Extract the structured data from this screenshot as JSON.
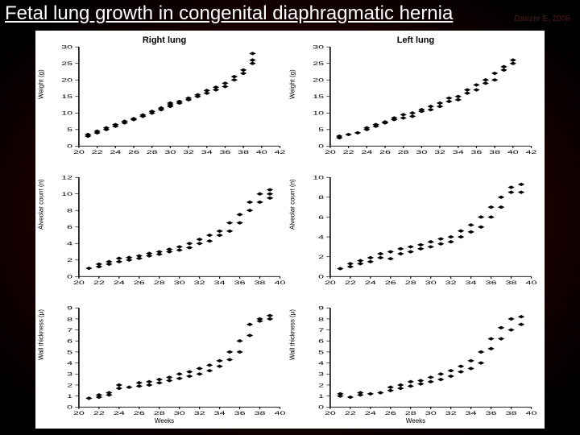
{
  "title": "Fetal lung growth in congenital diaphragmatic hernia",
  "citation": "Danzer E, 2008",
  "figure": {
    "background": "#ffffff",
    "marker_color": "#000000",
    "marker_size": 2.7,
    "axis_color": "#000000",
    "tick_fontsize": 7,
    "label_fontsize": 8,
    "title_fontsize": 11,
    "columns": [
      {
        "title": "Right lung"
      },
      {
        "title": "Left lung"
      }
    ],
    "xlabel_bottom": "Weeks",
    "panels": [
      {
        "row": 0,
        "col": 0,
        "ylabel": "Weight (g)",
        "xlim": [
          20,
          42
        ],
        "xtick_step": 2,
        "ylim": [
          0,
          30
        ],
        "ytick_step": 5,
        "points": [
          [
            21,
            3
          ],
          [
            21,
            3.5
          ],
          [
            22,
            4
          ],
          [
            22,
            4.5
          ],
          [
            23,
            5
          ],
          [
            23,
            5.5
          ],
          [
            24,
            6
          ],
          [
            24,
            6.5
          ],
          [
            25,
            7
          ],
          [
            25,
            7.5
          ],
          [
            26,
            8
          ],
          [
            26,
            8.3
          ],
          [
            27,
            9
          ],
          [
            27,
            9.4
          ],
          [
            28,
            10
          ],
          [
            28,
            10.5
          ],
          [
            29,
            11
          ],
          [
            29,
            11.5
          ],
          [
            30,
            12
          ],
          [
            30,
            12.5
          ],
          [
            30,
            13
          ],
          [
            31,
            13
          ],
          [
            31,
            13.5
          ],
          [
            32,
            14
          ],
          [
            32,
            14.5
          ],
          [
            33,
            15
          ],
          [
            33,
            15.5
          ],
          [
            34,
            16
          ],
          [
            34,
            16.8
          ],
          [
            35,
            17
          ],
          [
            35,
            17.8
          ],
          [
            36,
            18
          ],
          [
            36,
            19
          ],
          [
            37,
            20
          ],
          [
            37,
            21
          ],
          [
            38,
            22
          ],
          [
            38,
            23
          ],
          [
            39,
            25
          ],
          [
            39,
            26
          ],
          [
            39,
            28
          ]
        ]
      },
      {
        "row": 0,
        "col": 1,
        "ylabel": "Weight (g)",
        "xlim": [
          20,
          42
        ],
        "xtick_step": 2,
        "ylim": [
          0,
          30
        ],
        "ytick_step": 5,
        "points": [
          [
            21,
            2.5
          ],
          [
            21,
            3
          ],
          [
            22,
            3.5
          ],
          [
            23,
            4
          ],
          [
            24,
            5
          ],
          [
            24,
            5.5
          ],
          [
            25,
            6
          ],
          [
            25,
            6.5
          ],
          [
            26,
            7
          ],
          [
            26,
            7.3
          ],
          [
            27,
            8
          ],
          [
            27,
            8.5
          ],
          [
            28,
            8.5
          ],
          [
            28,
            9.5
          ],
          [
            29,
            9
          ],
          [
            29,
            10
          ],
          [
            30,
            10.5
          ],
          [
            30,
            11
          ],
          [
            31,
            11
          ],
          [
            31,
            12
          ],
          [
            32,
            12
          ],
          [
            32,
            13
          ],
          [
            33,
            13.5
          ],
          [
            33,
            14.5
          ],
          [
            34,
            14
          ],
          [
            34,
            15
          ],
          [
            35,
            16
          ],
          [
            35,
            17
          ],
          [
            36,
            17
          ],
          [
            36,
            18.5
          ],
          [
            37,
            19
          ],
          [
            37,
            20
          ],
          [
            38,
            20
          ],
          [
            38,
            22
          ],
          [
            39,
            23
          ],
          [
            39,
            24
          ],
          [
            40,
            25
          ],
          [
            40,
            26
          ]
        ]
      },
      {
        "row": 1,
        "col": 0,
        "ylabel": "Alveolar count (n)",
        "xlim": [
          20,
          40
        ],
        "xtick_step": 2,
        "ylim": [
          0,
          12
        ],
        "ytick_step": 2,
        "points": [
          [
            21,
            1
          ],
          [
            22,
            1.2
          ],
          [
            22,
            1.5
          ],
          [
            23,
            1.5
          ],
          [
            23,
            1.8
          ],
          [
            24,
            1.8
          ],
          [
            24,
            2.2
          ],
          [
            25,
            2
          ],
          [
            25,
            2.3
          ],
          [
            26,
            2.2
          ],
          [
            26,
            2.5
          ],
          [
            27,
            2.5
          ],
          [
            27,
            2.8
          ],
          [
            28,
            2.7
          ],
          [
            28,
            3
          ],
          [
            29,
            3
          ],
          [
            29,
            3.3
          ],
          [
            30,
            3.2
          ],
          [
            30,
            3.6
          ],
          [
            31,
            3.5
          ],
          [
            31,
            4
          ],
          [
            32,
            4
          ],
          [
            32,
            4.5
          ],
          [
            33,
            4.3
          ],
          [
            33,
            5
          ],
          [
            34,
            5
          ],
          [
            34,
            5.5
          ],
          [
            35,
            5.5
          ],
          [
            35,
            6.5
          ],
          [
            36,
            6.5
          ],
          [
            36,
            7.5
          ],
          [
            37,
            8
          ],
          [
            37,
            9
          ],
          [
            38,
            9
          ],
          [
            38,
            10
          ],
          [
            39,
            9.5
          ],
          [
            39,
            10
          ],
          [
            39,
            10.5
          ]
        ]
      },
      {
        "row": 1,
        "col": 1,
        "ylabel": "Alveolar count (n)",
        "xlim": [
          20,
          40
        ],
        "xtick_step": 2,
        "ylim": [
          0,
          10
        ],
        "ytick_step": 2,
        "points": [
          [
            21,
            0.8
          ],
          [
            22,
            1
          ],
          [
            22,
            1.3
          ],
          [
            23,
            1.3
          ],
          [
            23,
            1.6
          ],
          [
            24,
            1.5
          ],
          [
            24,
            1.9
          ],
          [
            25,
            1.9
          ],
          [
            25,
            2.3
          ],
          [
            26,
            1.8
          ],
          [
            26,
            2.5
          ],
          [
            27,
            2.3
          ],
          [
            27,
            2.8
          ],
          [
            28,
            2.5
          ],
          [
            28,
            3
          ],
          [
            29,
            2.8
          ],
          [
            29,
            3.2
          ],
          [
            30,
            3
          ],
          [
            30,
            3.5
          ],
          [
            31,
            3.3
          ],
          [
            31,
            3.8
          ],
          [
            32,
            3.5
          ],
          [
            32,
            4
          ],
          [
            33,
            4
          ],
          [
            33,
            4.6
          ],
          [
            34,
            4.5
          ],
          [
            34,
            5.2
          ],
          [
            35,
            5
          ],
          [
            35,
            6
          ],
          [
            36,
            6
          ],
          [
            36,
            7
          ],
          [
            37,
            7
          ],
          [
            37,
            8
          ],
          [
            38,
            8.5
          ],
          [
            38,
            9
          ],
          [
            39,
            8.5
          ],
          [
            39,
            9.3
          ]
        ]
      },
      {
        "row": 2,
        "col": 0,
        "ylabel": "Wall thickness (μ)",
        "xlim": [
          20,
          40
        ],
        "xtick_step": 2,
        "ylim": [
          0,
          9
        ],
        "ytick_step": 1,
        "points": [
          [
            21,
            0.8
          ],
          [
            22,
            0.9
          ],
          [
            22,
            1.1
          ],
          [
            23,
            1.1
          ],
          [
            23,
            1.3
          ],
          [
            24,
            1.7
          ],
          [
            24,
            2
          ],
          [
            25,
            1.8
          ],
          [
            26,
            1.9
          ],
          [
            26,
            2.2
          ],
          [
            27,
            2
          ],
          [
            27,
            2.3
          ],
          [
            28,
            2.2
          ],
          [
            28,
            2.5
          ],
          [
            29,
            2.4
          ],
          [
            29,
            2.7
          ],
          [
            30,
            2.6
          ],
          [
            30,
            3
          ],
          [
            31,
            2.8
          ],
          [
            31,
            3.2
          ],
          [
            32,
            3
          ],
          [
            32,
            3.5
          ],
          [
            33,
            3.3
          ],
          [
            33,
            3.8
          ],
          [
            34,
            3.7
          ],
          [
            34,
            4.2
          ],
          [
            35,
            4.3
          ],
          [
            35,
            5
          ],
          [
            36,
            5
          ],
          [
            36,
            6
          ],
          [
            37,
            6.5
          ],
          [
            37,
            7.5
          ],
          [
            38,
            7.8
          ],
          [
            38,
            8
          ],
          [
            39,
            8
          ],
          [
            39,
            8.3
          ]
        ]
      },
      {
        "row": 2,
        "col": 1,
        "ylabel": "Wall thickness (μ)",
        "xlim": [
          20,
          40
        ],
        "xtick_step": 2,
        "ylim": [
          0,
          9
        ],
        "ytick_step": 1,
        "points": [
          [
            21,
            1
          ],
          [
            21,
            1.2
          ],
          [
            22,
            0.9
          ],
          [
            23,
            1.1
          ],
          [
            23,
            1.3
          ],
          [
            24,
            1.2
          ],
          [
            25,
            1.3
          ],
          [
            26,
            1.5
          ],
          [
            26,
            1.8
          ],
          [
            27,
            1.7
          ],
          [
            27,
            2
          ],
          [
            28,
            1.9
          ],
          [
            28,
            2.3
          ],
          [
            29,
            2.1
          ],
          [
            29,
            2.4
          ],
          [
            30,
            2.3
          ],
          [
            30,
            2.7
          ],
          [
            31,
            2.5
          ],
          [
            31,
            3
          ],
          [
            32,
            2.8
          ],
          [
            32,
            3.3
          ],
          [
            33,
            3.2
          ],
          [
            33,
            3.7
          ],
          [
            34,
            3.5
          ],
          [
            34,
            4.2
          ],
          [
            35,
            4
          ],
          [
            35,
            5
          ],
          [
            36,
            5.3
          ],
          [
            36,
            6.2
          ],
          [
            37,
            6.2
          ],
          [
            37,
            7.2
          ],
          [
            38,
            7
          ],
          [
            38,
            8
          ],
          [
            39,
            7.5
          ],
          [
            39,
            8.2
          ]
        ]
      }
    ]
  }
}
